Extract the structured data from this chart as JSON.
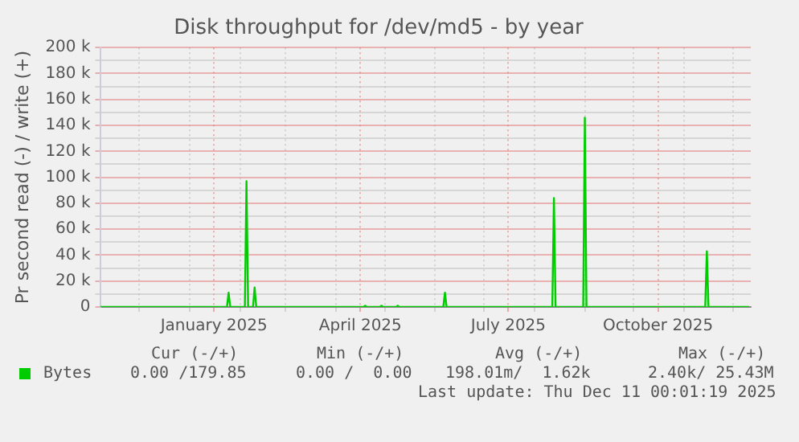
{
  "chart_data": {
    "type": "line",
    "title": "Disk throughput for /dev/md5 - by year",
    "ylabel": "Pr second read (-) / write (+)",
    "x": [
      "2024-11-07",
      "2025-01-24",
      "2025-01-25",
      "2025-01-26",
      "2025-02-04",
      "2025-02-05",
      "2025-02-06",
      "2025-02-09",
      "2025-02-10",
      "2025-02-11",
      "2025-04-18",
      "2025-04-19",
      "2025-04-20",
      "2025-04-28",
      "2025-04-29",
      "2025-04-30",
      "2025-05-08",
      "2025-05-09",
      "2025-05-10",
      "2025-06-06",
      "2025-06-07",
      "2025-06-08",
      "2025-08-12",
      "2025-08-13",
      "2025-08-14",
      "2025-08-31",
      "2025-09-01",
      "2025-09-02",
      "2025-11-14",
      "2025-11-15",
      "2025-11-16",
      "2025-12-11"
    ],
    "series": [
      {
        "name": "Bytes",
        "color": "#00cc00",
        "values": [
          0,
          0,
          11000,
          0,
          0,
          97000,
          0,
          0,
          15000,
          0,
          0,
          1000,
          0,
          0,
          1000,
          0,
          0,
          1000,
          0,
          0,
          11000,
          0,
          0,
          84000,
          0,
          0,
          146000,
          0,
          0,
          43000,
          0,
          0
        ]
      }
    ],
    "xlim": [
      "2024-11-07",
      "2025-12-12"
    ],
    "xticks": [
      {
        "value": "2024-12-01",
        "label": null
      },
      {
        "value": "2025-01-01",
        "label": null
      },
      {
        "value": "2025-01-16",
        "label": "January 2025"
      },
      {
        "value": "2025-02-01",
        "label": null
      },
      {
        "value": "2025-03-01",
        "label": null
      },
      {
        "value": "2025-04-01",
        "label": null
      },
      {
        "value": "2025-04-16",
        "label": "April 2025"
      },
      {
        "value": "2025-05-01",
        "label": null
      },
      {
        "value": "2025-06-01",
        "label": null
      },
      {
        "value": "2025-07-01",
        "label": null
      },
      {
        "value": "2025-07-16",
        "label": "July 2025"
      },
      {
        "value": "2025-08-01",
        "label": null
      },
      {
        "value": "2025-09-01",
        "label": null
      },
      {
        "value": "2025-10-01",
        "label": null
      },
      {
        "value": "2025-10-16",
        "label": "October 2025"
      },
      {
        "value": "2025-11-01",
        "label": null
      },
      {
        "value": "2025-12-01",
        "label": null
      }
    ],
    "ylim": [
      0,
      200000
    ],
    "yticks": [
      {
        "value": 0,
        "label": "0"
      },
      {
        "value": 10000,
        "label": null
      },
      {
        "value": 20000,
        "label": "20 k"
      },
      {
        "value": 30000,
        "label": null
      },
      {
        "value": 40000,
        "label": "40 k"
      },
      {
        "value": 50000,
        "label": null
      },
      {
        "value": 60000,
        "label": "60 k"
      },
      {
        "value": 70000,
        "label": null
      },
      {
        "value": 80000,
        "label": "80 k"
      },
      {
        "value": 90000,
        "label": null
      },
      {
        "value": 100000,
        "label": "100 k"
      },
      {
        "value": 110000,
        "label": null
      },
      {
        "value": 120000,
        "label": "120 k"
      },
      {
        "value": 130000,
        "label": null
      },
      {
        "value": 140000,
        "label": "140 k"
      },
      {
        "value": 150000,
        "label": null
      },
      {
        "value": 160000,
        "label": "160 k"
      },
      {
        "value": 170000,
        "label": null
      },
      {
        "value": 180000,
        "label": "180 k"
      },
      {
        "value": 190000,
        "label": null
      },
      {
        "value": 200000,
        "label": "200 k"
      }
    ],
    "grid": true,
    "legend": "bottom",
    "marker": "none",
    "line_style": "solid",
    "annotations": [
      "Cur (-/+)",
      "Min (-/+)",
      "Avg (-/+)",
      "Max (-/+)",
      "0.00 /179.85",
      "0.00 /  0.00",
      "198.01m/  1.62k",
      "2.40k/ 25.43M",
      "Last update: Thu Dec 11 00:01:19 2025"
    ]
  }
}
